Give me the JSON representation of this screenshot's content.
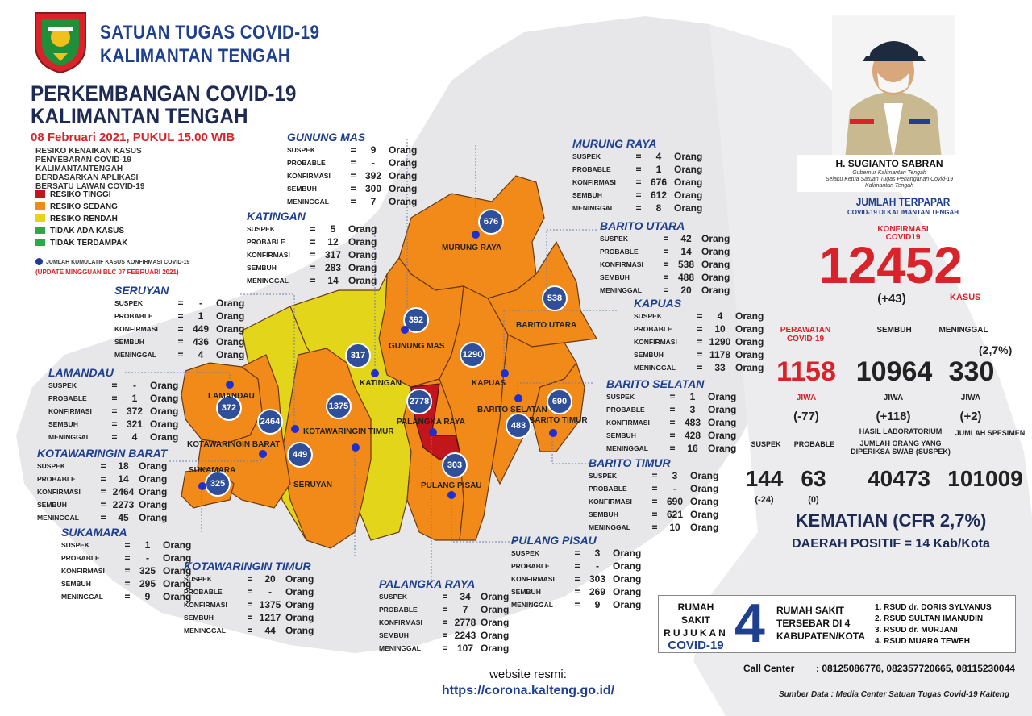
{
  "header": {
    "org_line1": "SATUAN TUGAS COVID-19",
    "org_line2": "KALIMANTAN TENGAH",
    "title_line1": "PERKEMBANGAN COVID-19",
    "title_line2": "KALIMANTAN TENGAH",
    "date": "08 Februari 2021, PUKUL 15.00 WIB"
  },
  "legend": {
    "title_lines": [
      "RESIKO KENAIKAN KASUS",
      "PENYEBARAN COVID-19",
      "KALIMANTANTENGAH",
      "BERDASARKAN APLIKASI",
      "BERSATU LAWAN COVID-19"
    ],
    "items": [
      {
        "label": "RESIKO TINGGI",
        "color": "#c0161c"
      },
      {
        "label": "RESIKO SEDANG",
        "color": "#f28a1a"
      },
      {
        "label": "RESIKO RENDAH",
        "color": "#e2d51a"
      },
      {
        "label": "TIDAK ADA KASUS",
        "color": "#2aa84a"
      },
      {
        "label": "TIDAK TERDAMPAK",
        "color": "#2aa84a"
      }
    ],
    "dot_note": "JUMLAH KUMULATIF KASUS KONFIRMASI COVID-19",
    "update_note": "(UPDATE MINGGUAN BLC 07 FEBRUARI 2021)"
  },
  "labels": {
    "suspek": "SUSPEK",
    "probable": "PROBABLE",
    "konfirmasi": "KONFIRMASI",
    "sembuh": "SEMBUH",
    "meninggal": "MENINGGAL",
    "eq": "=",
    "orang": "Orang"
  },
  "regions": [
    {
      "id": "gunung-mas",
      "name": "GUNUNG MAS",
      "map_label": "GUNUNG MAS",
      "risk": "sedang",
      "suspek": "9",
      "probable": "-",
      "konfirmasi": "392",
      "sembuh": "300",
      "meninggal": "7",
      "circle": "392"
    },
    {
      "id": "murung-raya",
      "name": "MURUNG RAYA",
      "map_label": "MURUNG RAYA",
      "risk": "sedang",
      "suspek": "4",
      "probable": "1",
      "konfirmasi": "676",
      "sembuh": "612",
      "meninggal": "8",
      "circle": "676"
    },
    {
      "id": "katingan",
      "name": "KATINGAN",
      "map_label": "KATINGAN",
      "risk": "rendah",
      "suspek": "5",
      "probable": "12",
      "konfirmasi": "317",
      "sembuh": "283",
      "meninggal": "14",
      "circle": "317"
    },
    {
      "id": "barito-utara",
      "name": "BARITO UTARA",
      "map_label": "BARITO UTARA",
      "risk": "sedang",
      "suspek": "42",
      "probable": "14",
      "konfirmasi": "538",
      "sembuh": "488",
      "meninggal": "20",
      "circle": "538"
    },
    {
      "id": "seruyan",
      "name": "SERUYAN",
      "map_label": "SERUYAN",
      "risk": "rendah",
      "suspek": "-",
      "probable": "1",
      "konfirmasi": "449",
      "sembuh": "436",
      "meninggal": "4",
      "circle": "449"
    },
    {
      "id": "kapuas",
      "name": "KAPUAS",
      "map_label": "KAPUAS",
      "risk": "sedang",
      "suspek": "4",
      "probable": "10",
      "konfirmasi": "1290",
      "sembuh": "1178",
      "meninggal": "33",
      "circle": "1290"
    },
    {
      "id": "lamandau",
      "name": "LAMANDAU",
      "map_label": "LAMANDAU",
      "risk": "sedang",
      "suspek": "-",
      "probable": "1",
      "konfirmasi": "372",
      "sembuh": "321",
      "meninggal": "4",
      "circle": "372"
    },
    {
      "id": "barito-selatan",
      "name": "BARITO SELATAN",
      "map_label": "BARITO SELATAN",
      "risk": "sedang",
      "suspek": "1",
      "probable": "3",
      "konfirmasi": "483",
      "sembuh": "428",
      "meninggal": "16",
      "circle": "483"
    },
    {
      "id": "kotawaringin-barat",
      "name": "KOTAWARINGIN BARAT",
      "map_label": "KOTAWARINGIN BARAT",
      "risk": "sedang",
      "suspek": "18",
      "probable": "14",
      "konfirmasi": "2464",
      "sembuh": "2273",
      "meninggal": "45",
      "circle": "2464"
    },
    {
      "id": "barito-timur",
      "name": "BARITO TIMUR",
      "map_label": "BARITO TIMUR",
      "risk": "sedang",
      "suspek": "3",
      "probable": "-",
      "konfirmasi": "690",
      "sembuh": "621",
      "meninggal": "10",
      "circle": "690"
    },
    {
      "id": "sukamara",
      "name": "SUKAMARA",
      "map_label": "SUKAMARA",
      "risk": "sedang",
      "suspek": "1",
      "probable": "-",
      "konfirmasi": "325",
      "sembuh": "295",
      "meninggal": "9",
      "circle": "325"
    },
    {
      "id": "pulang-pisau",
      "name": "PULANG PISAU",
      "map_label": "PULANG PISAU",
      "risk": "rendah",
      "suspek": "3",
      "probable": "-",
      "konfirmasi": "303",
      "sembuh": "269",
      "meninggal": "9",
      "circle": "303"
    },
    {
      "id": "kotawaringin-timur",
      "name": "KOTAWARINGIN TIMUR",
      "map_label": "KOTAWARINGIN TIMUR",
      "risk": "sedang",
      "suspek": "20",
      "probable": "-",
      "konfirmasi": "1375",
      "sembuh": "1217",
      "meninggal": "44",
      "circle": "1375"
    },
    {
      "id": "palangka-raya",
      "name": "PALANGKA RAYA",
      "map_label": "PALANGKA RAYA",
      "risk": "tinggi",
      "suspek": "34",
      "probable": "7",
      "konfirmasi": "2778",
      "sembuh": "2243",
      "meninggal": "107",
      "circle": "2778"
    }
  ],
  "governor": {
    "name": "H. SUGIANTO SABRAN",
    "role_lines": [
      "Gubernur Kalimantan Tengah",
      "Selaku Ketua Satuan Tugas Penanganan Covid-19",
      "Kalimantan Tengah"
    ]
  },
  "summary": {
    "heading": "JUMLAH TERPAPAR",
    "subheading": "COVID-19 DI KALIMANTAN TENGAH",
    "konf_label_1": "KONFIRMASI",
    "konf_label_2": "COVID19",
    "konfirmasi": "12452",
    "konfirmasi_change": "(+43)",
    "kasus_label": "KASUS",
    "perawatan_label_1": "PERAWATAN",
    "perawatan_label_2": "COVID-19",
    "sembuh_label": "SEMBUH",
    "meninggal_label": "MENINGGAL",
    "meninggal_pct": "(2,7%)",
    "perawatan": "1158",
    "sembuh": "10964",
    "meninggal": "330",
    "jiwa": "JIWA",
    "perawatan_change": "(-77)",
    "sembuh_change": "(+118)",
    "meninggal_change": "(+2)",
    "hasil_lab": "HASIL LABORATORIUM",
    "suspek_label": "SUSPEK",
    "probable_label": "PROBABLE",
    "diperiksa_1": "JUMLAH ORANG YANG",
    "diperiksa_2": "DIPERIKSA SWAB (SUSPEK)",
    "spesimen_label": "JUMLAH SPESIMEN",
    "suspek": "144",
    "probable": "63",
    "diperiksa": "40473",
    "spesimen": "101009",
    "suspek_change": "(-24)",
    "probable_change": "(0)",
    "kematian": "KEMATIAN (CFR 2,7%)",
    "daerah_positif": "DAERAH POSITIF = 14 Kab/Kota"
  },
  "hospital": {
    "title_lines": [
      "RUMAH SAKIT",
      "RUJUKAN",
      "COVID-19"
    ],
    "count": "4",
    "desc_lines": [
      "RUMAH SAKIT",
      "TERSEBAR DI 4",
      "KABUPATEN/KOTA"
    ],
    "list": [
      "1. RSUD dr. DORIS SYLVANUS",
      "2. RSUD SULTAN IMANUDIN",
      "3. RSUD dr. MURJANI",
      "4. RSUD MUARA TEWEH"
    ]
  },
  "call_center": {
    "label": "Call Center",
    "numbers": ": 08125086776, 082357720665, 08115230044"
  },
  "website": {
    "label": "website resmi:",
    "url": "https://corona.kalteng.go.id/"
  },
  "source": "Sumber Data : Media Center Satuan Tugas Covid-19 Kalteng",
  "colors": {
    "tinggi": "#c0161c",
    "sedang": "#f28a1a",
    "rendah": "#e2d51a",
    "outline": "#5a3a1a",
    "bg_map": "#e6e6e8",
    "accent_blue": "#1f3f8f",
    "accent_red": "#d8232a"
  }
}
